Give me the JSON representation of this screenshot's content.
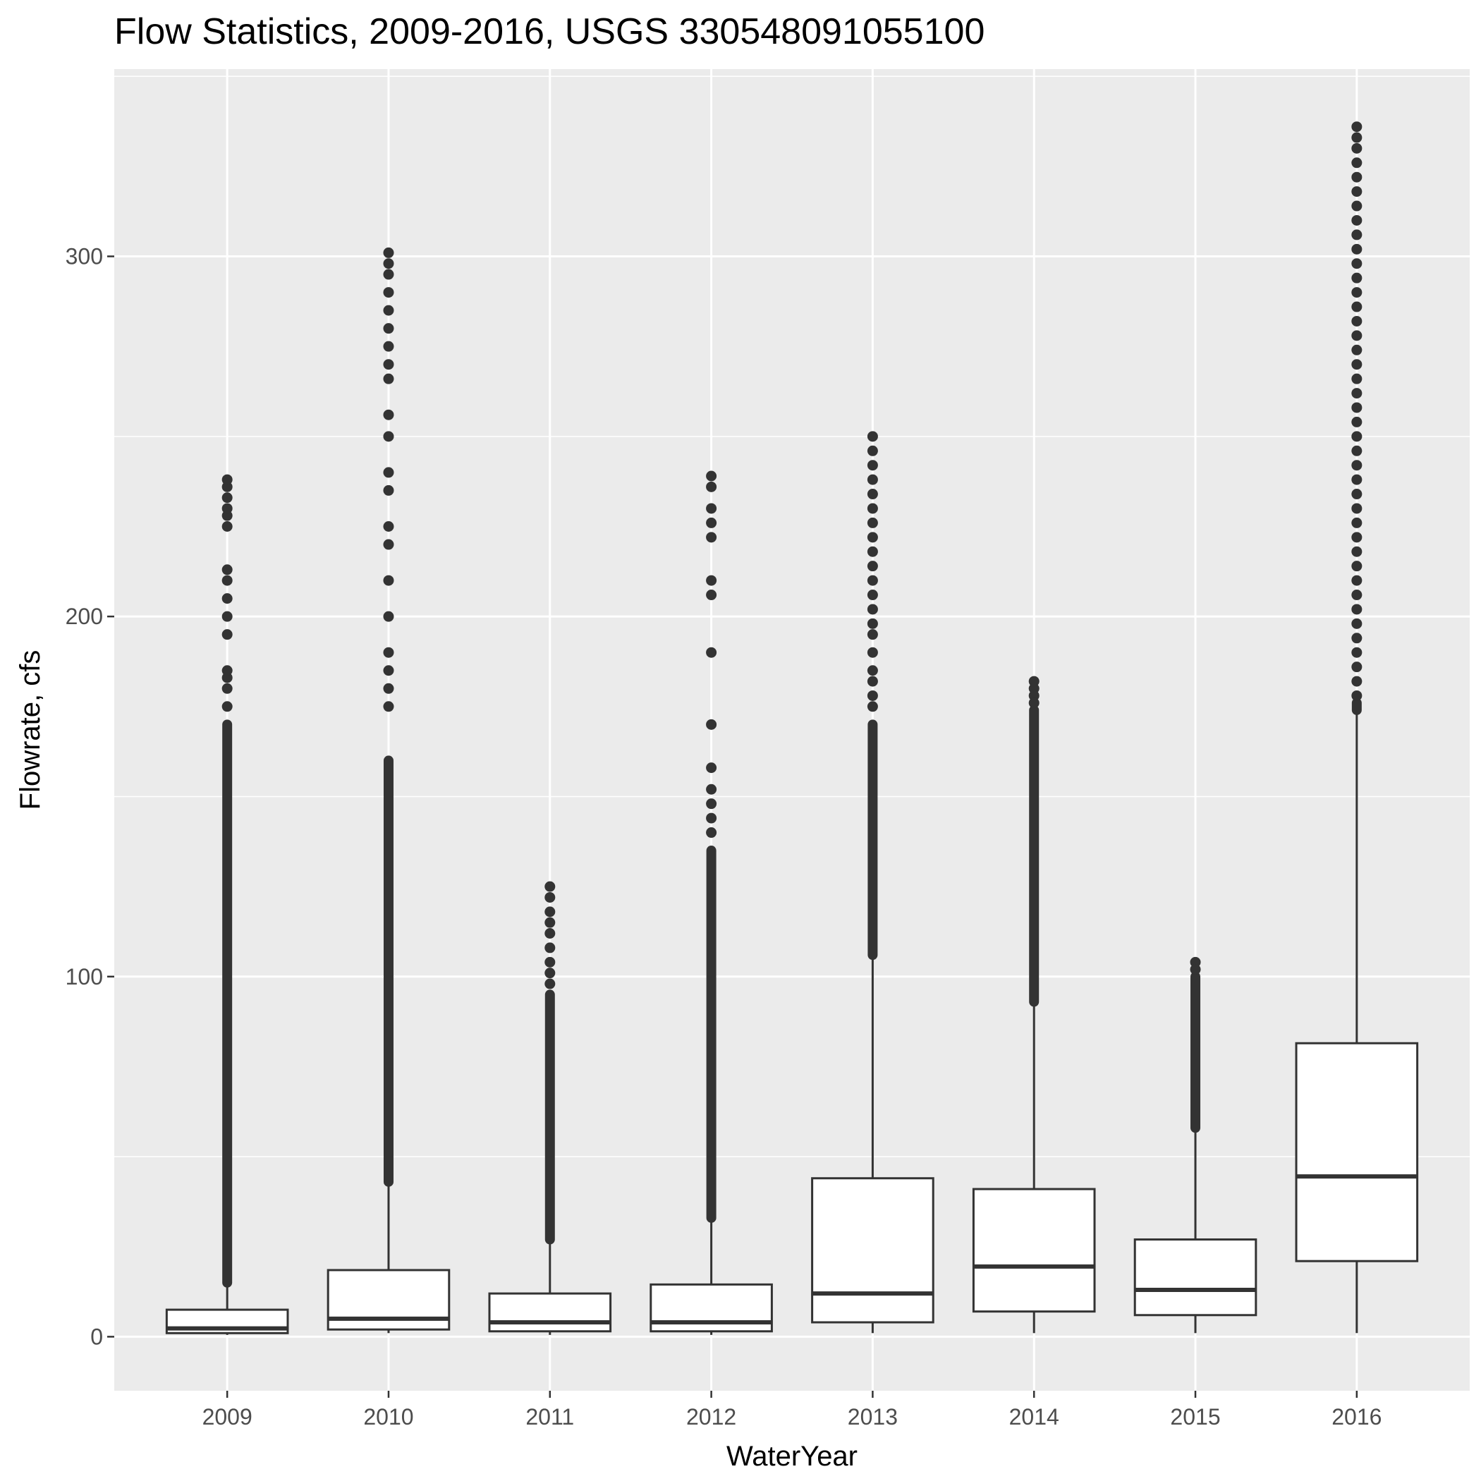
{
  "chart_data": {
    "type": "boxplot",
    "title": "Flow Statistics, 2009-2016, USGS 330548091055100",
    "xlabel": "WaterYear",
    "ylabel": "Flowrate, cfs",
    "ylim": [
      -15,
      352
    ],
    "y_ticks": [
      0,
      100,
      200,
      300
    ],
    "y_tick_labels": [
      "0",
      "100",
      "200",
      "300"
    ],
    "grid": true,
    "categories": [
      "2009",
      "2010",
      "2011",
      "2012",
      "2013",
      "2014",
      "2015",
      "2016"
    ],
    "boxes": [
      {
        "category": "2009",
        "min": 0.5,
        "q1": 1,
        "median": 2.3,
        "q3": 7.5,
        "whisker_high": 15,
        "outlier_low": 15,
        "outlier_high": 238,
        "outliers_sparse": [
          225,
          228,
          230,
          233,
          236,
          238,
          205,
          210,
          213,
          195,
          200,
          180,
          183,
          185,
          175
        ],
        "outlier_dense_top": 170
      },
      {
        "category": "2010",
        "min": 1,
        "q1": 2,
        "median": 5,
        "q3": 18.5,
        "whisker_high": 43,
        "outlier_low": 43,
        "outlier_high": 301,
        "outliers_sparse": [
          301,
          298,
          295,
          290,
          285,
          280,
          275,
          270,
          266,
          256,
          250,
          240,
          235,
          225,
          220,
          210,
          200,
          190,
          185,
          180,
          175
        ],
        "outlier_dense_top": 160
      },
      {
        "category": "2011",
        "min": 0.5,
        "q1": 1.5,
        "median": 4,
        "q3": 12,
        "whisker_high": 27,
        "outlier_low": 27,
        "outlier_high": 125,
        "outliers_sparse": [
          125,
          122,
          118,
          115,
          112,
          108,
          104,
          101,
          98
        ],
        "outlier_dense_top": 95
      },
      {
        "category": "2012",
        "min": 0.5,
        "q1": 1.5,
        "median": 4,
        "q3": 14.5,
        "whisker_high": 33,
        "outlier_low": 33,
        "outlier_high": 239,
        "outliers_sparse": [
          239,
          236,
          230,
          226,
          222,
          210,
          206,
          190,
          170,
          158,
          152,
          148,
          144,
          140
        ],
        "outlier_dense_top": 135
      },
      {
        "category": "2013",
        "min": 1,
        "q1": 4,
        "median": 12,
        "q3": 44,
        "whisker_high": 106,
        "outlier_low": 106,
        "outlier_high": 250,
        "outliers_sparse": [
          250,
          246,
          242,
          238,
          234,
          230,
          226,
          222,
          218,
          214,
          210,
          206,
          202,
          198,
          195,
          190,
          185,
          182,
          178,
          175
        ],
        "outlier_dense_top": 170
      },
      {
        "category": "2014",
        "min": 1,
        "q1": 7,
        "median": 19.5,
        "q3": 41,
        "whisker_high": 93,
        "outlier_low": 93,
        "outlier_high": 182,
        "outliers_sparse": [
          182,
          180,
          178,
          176
        ],
        "outlier_dense_top": 174
      },
      {
        "category": "2015",
        "min": 1,
        "q1": 6,
        "median": 13,
        "q3": 27,
        "whisker_high": 58,
        "outlier_low": 58,
        "outlier_high": 104,
        "outliers_sparse": [
          104,
          102
        ],
        "outlier_dense_top": 100
      },
      {
        "category": "2016",
        "min": 1,
        "q1": 21,
        "median": 44.5,
        "q3": 81.5,
        "whisker_high": 174,
        "outlier_low": 174,
        "outlier_high": 336,
        "outliers_sparse": [
          336,
          333,
          330,
          326,
          322,
          318,
          314,
          310,
          306,
          302,
          298,
          294,
          290,
          286,
          282,
          278,
          274,
          270,
          266,
          262,
          258,
          254,
          250,
          246,
          242,
          238,
          234,
          230,
          226,
          222,
          218,
          214,
          210,
          206,
          202,
          198,
          194,
          190,
          186,
          182,
          178
        ],
        "outlier_dense_top": 176
      }
    ],
    "colors": {
      "panel": "#EBEBEB",
      "grid": "#FFFFFF",
      "box_fill": "#FFFFFF",
      "stroke": "#333333"
    }
  }
}
